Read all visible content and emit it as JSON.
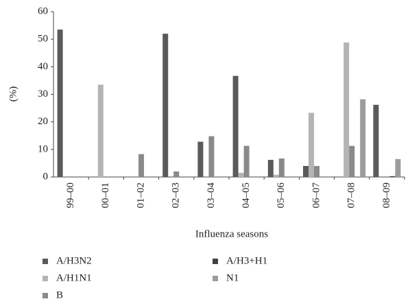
{
  "chart_data": {
    "type": "bar",
    "ylabel": "(%)",
    "xlabel": "Influenza seasons",
    "categories": [
      "99–00",
      "00–01",
      "01–02",
      "02–03",
      "03–04",
      "04–05",
      "05–06",
      "06–07",
      "07–08",
      "08–09"
    ],
    "series": [
      {
        "name": "A/H3N2",
        "color": "#5a5a5a",
        "values": [
          53.5,
          0,
          0,
          52,
          12.8,
          36.7,
          6.2,
          4,
          0,
          26.2
        ]
      },
      {
        "name": "A/H1N1",
        "color": "#b4b4b4",
        "values": [
          0,
          33.5,
          0,
          0,
          0,
          1.5,
          0.8,
          23.3,
          48.8,
          0
        ]
      },
      {
        "name": "B",
        "color": "#8a8a8a",
        "values": [
          0,
          0,
          8.3,
          2,
          14.8,
          11.3,
          6.7,
          4,
          11.3,
          0
        ]
      },
      {
        "name": "A/H3+H1",
        "color": "#404040",
        "values": [
          0,
          0,
          0,
          0,
          0,
          0,
          0,
          0,
          0,
          0.3
        ]
      },
      {
        "name": "N1",
        "color": "#9c9c9c",
        "values": [
          0,
          0,
          0,
          0,
          0,
          0,
          0,
          0,
          28.2,
          6.5
        ]
      }
    ],
    "ylim": [
      0,
      60
    ],
    "yticks": [
      0,
      10,
      20,
      30,
      40,
      50,
      60
    ],
    "grid": false
  }
}
